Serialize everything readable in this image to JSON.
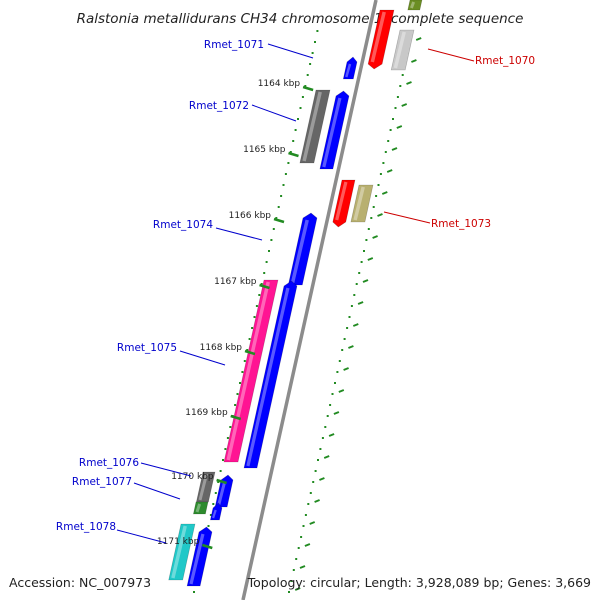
{
  "title": "Ralstonia metallidurans CH34 chromosome 1, complete sequence",
  "footer": {
    "accession": "Accession: NC_007973",
    "topology": "Topology: circular; Length: 3,928,089 bp; Genes: 3,669"
  },
  "ticks": [
    "1164 kbp",
    "1165 kbp",
    "1166 kbp",
    "1167 kbp",
    "1168 kbp",
    "1169 kbp",
    "1170 kbp",
    "1171 kbp"
  ],
  "gene_labels": [
    {
      "name": "Rmet_1071",
      "side": "left",
      "color": "#0000cc"
    },
    {
      "name": "Rmet_1072",
      "side": "left",
      "color": "#0000cc"
    },
    {
      "name": "Rmet_1074",
      "side": "left",
      "color": "#0000cc"
    },
    {
      "name": "Rmet_1075",
      "side": "left",
      "color": "#0000cc"
    },
    {
      "name": "Rmet_1076",
      "side": "left",
      "color": "#0000cc"
    },
    {
      "name": "Rmet_1077",
      "side": "left",
      "color": "#0000cc"
    },
    {
      "name": "Rmet_1078",
      "side": "left",
      "color": "#0000cc"
    },
    {
      "name": "Rmet_1070",
      "side": "right",
      "color": "#cc0000"
    },
    {
      "name": "Rmet_1073",
      "side": "right",
      "color": "#cc0000"
    }
  ],
  "colors": {
    "backbone": "#8c8c8c",
    "tick_marks": "#228b22",
    "forward_cds": "#0000ff",
    "reverse_cds": "#ff0000",
    "pink_feature": "#ff1493",
    "gray_feature": "#666666",
    "olive_feature": "#b8b070",
    "cyan_feature": "#20c8c8",
    "green_feature": "#2e8b2e"
  }
}
